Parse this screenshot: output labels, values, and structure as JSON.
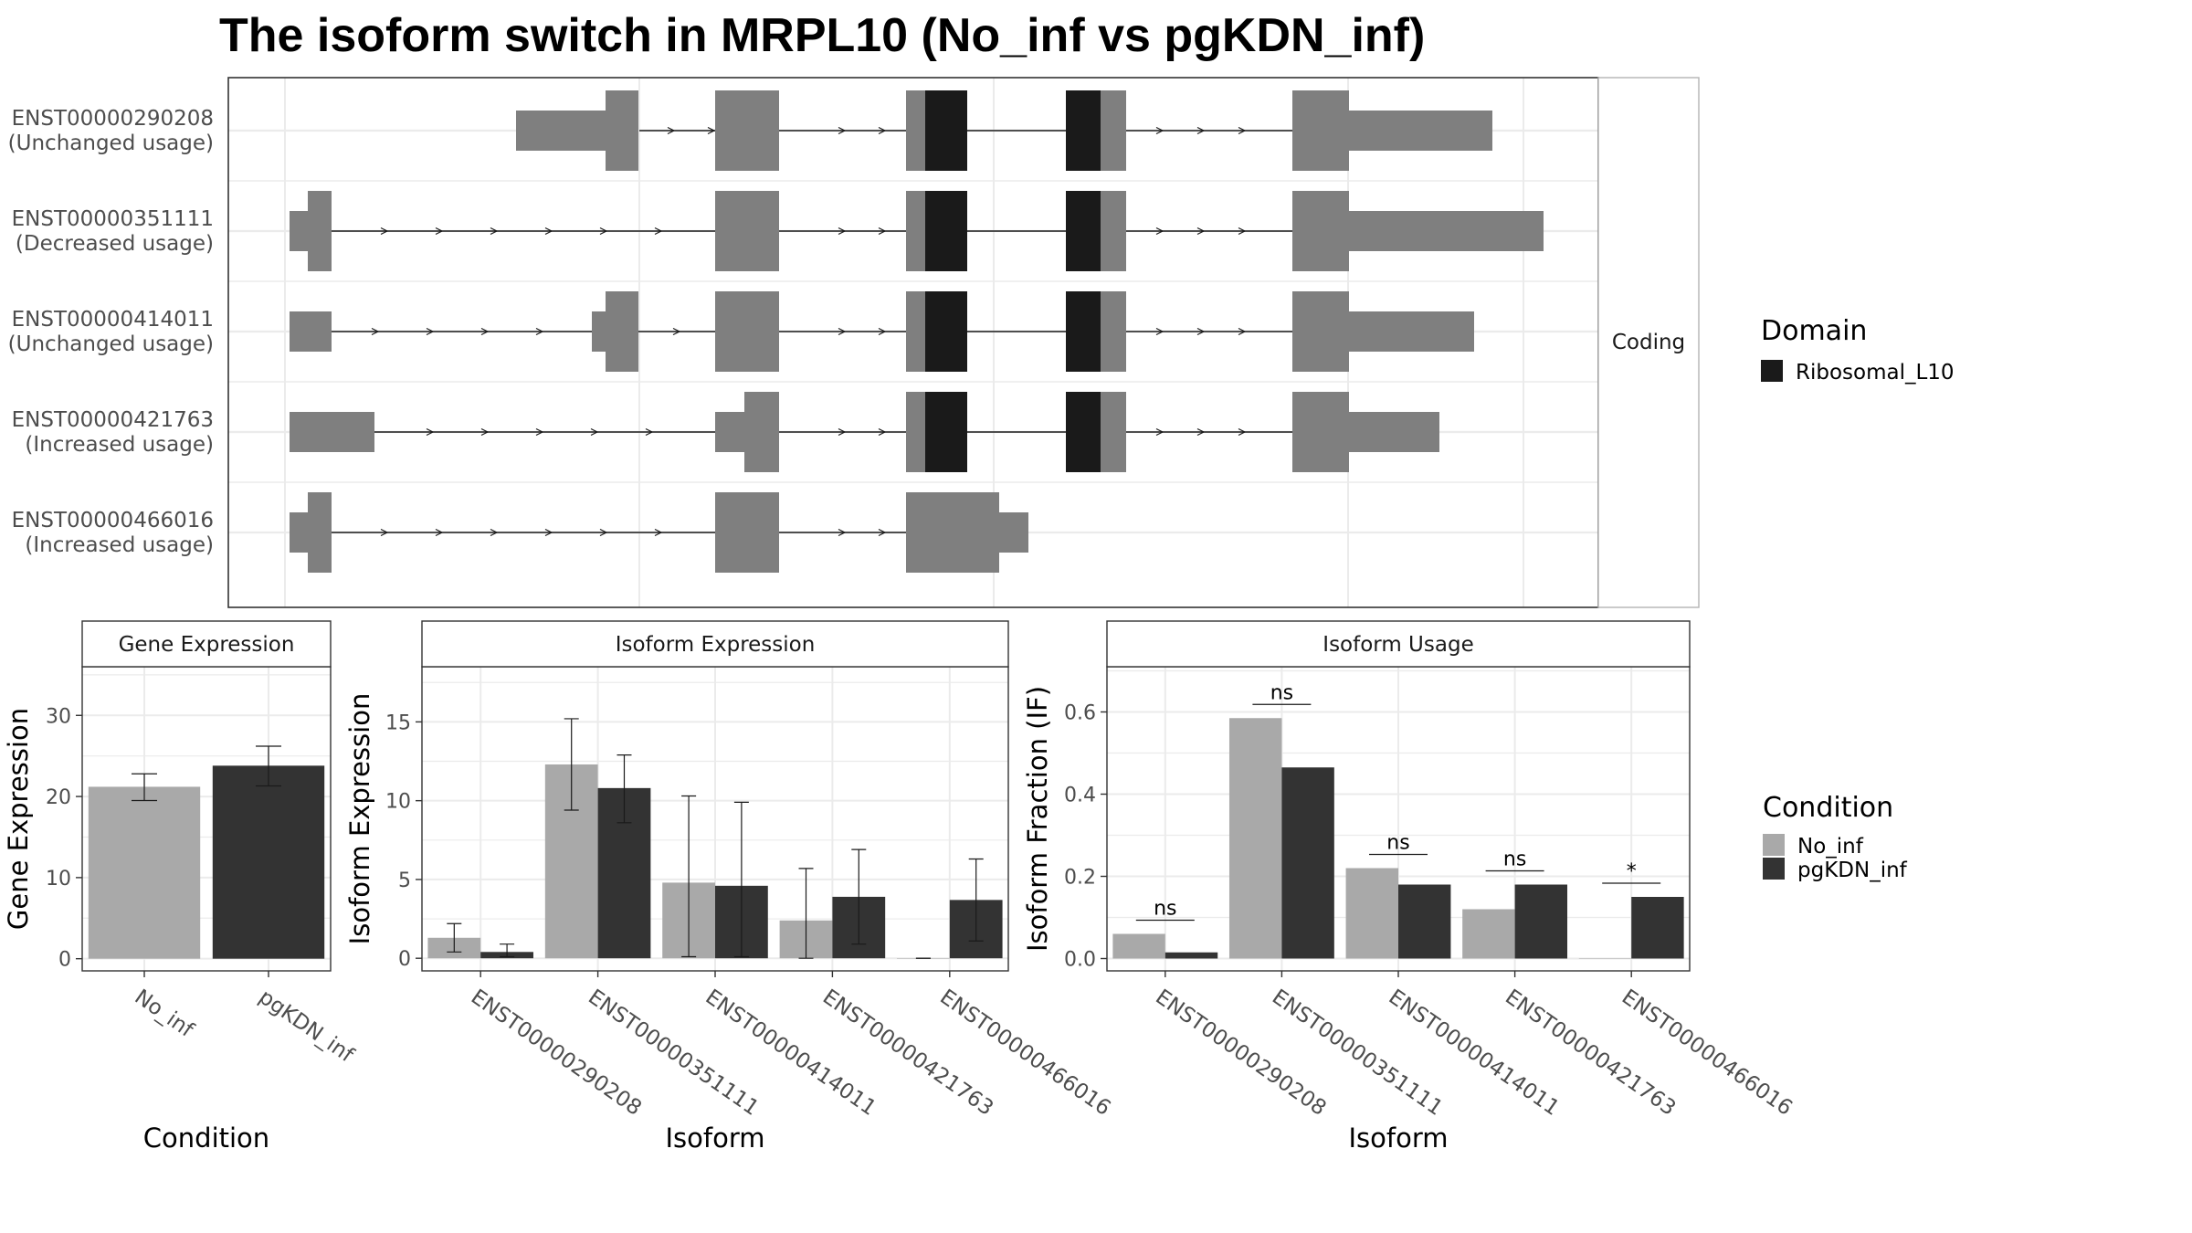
{
  "title": "The isoform switch in MRPL10 (No_inf vs pgKDN_inf)",
  "colors": {
    "exon": "#7f7f7f",
    "domain": "#1a1a1a",
    "no_inf": "#a9a9a9",
    "pgkdn_inf": "#333333",
    "grid": "#ebebeb",
    "strip_bg": "#ffffff",
    "panel_border": "#333333"
  },
  "structure": {
    "strip_label": "Coding",
    "transcripts": [
      {
        "id": "ENST00000290208",
        "usage": "(Unchanged usage)"
      },
      {
        "id": "ENST00000351111",
        "usage": "(Decreased usage)"
      },
      {
        "id": "ENST00000414011",
        "usage": "(Unchanged usage)"
      },
      {
        "id": "ENST00000421763",
        "usage": "(Increased usage)"
      },
      {
        "id": "ENST00000466016",
        "usage": "(Increased usage)"
      }
    ]
  },
  "legend_domain": {
    "title": "Domain",
    "items": [
      {
        "label": "Ribosomal_L10",
        "color": "#1a1a1a"
      }
    ]
  },
  "legend_condition": {
    "title": "Condition",
    "items": [
      {
        "label": "No_inf",
        "color": "#a9a9a9"
      },
      {
        "label": "pgKDN_inf",
        "color": "#333333"
      }
    ]
  },
  "chart_data": [
    {
      "type": "bar",
      "strip": "Gene Expression",
      "xlabel": "Condition",
      "ylabel": "Gene Expression",
      "categories": [
        "No_inf",
        "pgKDN_inf"
      ],
      "values": [
        21.2,
        23.8
      ],
      "errors": [
        [
          19.5,
          22.8
        ],
        [
          21.3,
          26.2
        ]
      ],
      "ylim": [
        -1.5,
        36
      ],
      "yticks": [
        0,
        10,
        20,
        30
      ],
      "grid": true
    },
    {
      "type": "bar",
      "strip": "Isoform Expression",
      "xlabel": "Isoform",
      "ylabel": "Isoform Expression",
      "categories": [
        "ENST00000290208",
        "ENST00000351111",
        "ENST00000414011",
        "ENST00000421763",
        "ENST00000466016"
      ],
      "series": [
        {
          "name": "No_inf",
          "values": [
            1.3,
            12.3,
            4.8,
            2.4,
            0.0
          ],
          "errors": [
            [
              0.4,
              2.2
            ],
            [
              9.4,
              15.2
            ],
            [
              0.1,
              10.3
            ],
            [
              0.0,
              5.7
            ],
            [
              0.0,
              0.0
            ]
          ]
        },
        {
          "name": "pgKDN_inf",
          "values": [
            0.4,
            10.8,
            4.6,
            3.9,
            3.7
          ],
          "errors": [
            [
              0.1,
              0.9
            ],
            [
              8.6,
              12.9
            ],
            [
              0.1,
              9.9
            ],
            [
              0.9,
              6.9
            ],
            [
              1.1,
              6.3
            ]
          ]
        }
      ],
      "ylim": [
        -0.8,
        18.5
      ],
      "yticks": [
        0,
        5,
        10,
        15
      ],
      "grid": true
    },
    {
      "type": "bar",
      "strip": "Isoform Usage",
      "xlabel": "Isoform",
      "ylabel": "Isoform Fraction (IF)",
      "categories": [
        "ENST00000290208",
        "ENST00000351111",
        "ENST00000414011",
        "ENST00000421763",
        "ENST00000466016"
      ],
      "series": [
        {
          "name": "No_inf",
          "values": [
            0.06,
            0.585,
            0.22,
            0.12,
            0.0
          ]
        },
        {
          "name": "pgKDN_inf",
          "values": [
            0.015,
            0.465,
            0.18,
            0.18,
            0.15
          ]
        }
      ],
      "significance": [
        "ns",
        "ns",
        "ns",
        "ns",
        "*"
      ],
      "ylim": [
        -0.03,
        0.71
      ],
      "yticks": [
        0.0,
        0.2,
        0.4,
        0.6
      ],
      "grid": true
    }
  ]
}
